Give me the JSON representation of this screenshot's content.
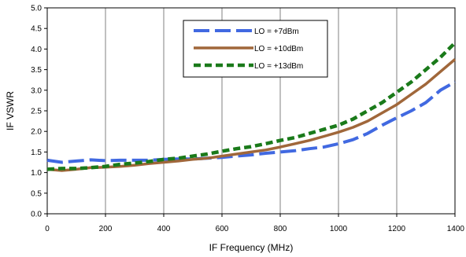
{
  "chart_data": {
    "type": "line",
    "title": "",
    "xlabel": "IF Frequency (MHz)",
    "ylabel": "IF VSWR",
    "xlim": [
      0,
      1400
    ],
    "ylim": [
      0.0,
      5.0
    ],
    "x_ticks": [
      0,
      200,
      400,
      600,
      800,
      1000,
      1200,
      1400
    ],
    "y_ticks": [
      0.0,
      0.5,
      1.0,
      1.5,
      2.0,
      2.5,
      3.0,
      3.5,
      4.0,
      4.5,
      5.0
    ],
    "x_tick_labels": [
      "0",
      "200",
      "400",
      "600",
      "800",
      "1000",
      "1200",
      "1400"
    ],
    "y_tick_labels": [
      "0.0",
      "0.5",
      "1.0",
      "1.5",
      "2.0",
      "2.5",
      "3.0",
      "3.5",
      "4.0",
      "4.5",
      "5.0"
    ],
    "grid": "vertical",
    "legend_position": "top-center",
    "series": [
      {
        "name": "LO = +7dBm",
        "color": "#4169E1",
        "dash": "long-dash",
        "x": [
          0,
          50,
          100,
          150,
          200,
          250,
          300,
          350,
          400,
          450,
          500,
          550,
          600,
          650,
          700,
          750,
          800,
          850,
          900,
          950,
          1000,
          1050,
          1100,
          1150,
          1200,
          1250,
          1300,
          1350,
          1400
        ],
        "y": [
          1.3,
          1.25,
          1.28,
          1.31,
          1.29,
          1.3,
          1.3,
          1.3,
          1.32,
          1.33,
          1.33,
          1.35,
          1.37,
          1.4,
          1.43,
          1.47,
          1.5,
          1.53,
          1.58,
          1.62,
          1.7,
          1.8,
          1.95,
          2.15,
          2.33,
          2.5,
          2.7,
          3.0,
          3.2
        ]
      },
      {
        "name": "LO = +10dBm",
        "color": "#A0673A",
        "dash": "solid",
        "x": [
          0,
          50,
          100,
          150,
          200,
          250,
          300,
          350,
          400,
          450,
          500,
          550,
          600,
          650,
          700,
          750,
          800,
          850,
          900,
          950,
          1000,
          1050,
          1100,
          1150,
          1200,
          1250,
          1300,
          1350,
          1400
        ],
        "y": [
          1.08,
          1.05,
          1.08,
          1.12,
          1.13,
          1.15,
          1.18,
          1.22,
          1.25,
          1.28,
          1.32,
          1.35,
          1.4,
          1.45,
          1.5,
          1.55,
          1.62,
          1.7,
          1.78,
          1.88,
          1.98,
          2.1,
          2.25,
          2.45,
          2.65,
          2.9,
          3.15,
          3.45,
          3.75
        ]
      },
      {
        "name": "LO = +13dBm",
        "color": "#1A7A1A",
        "dash": "dashed",
        "x": [
          0,
          50,
          100,
          150,
          200,
          250,
          300,
          350,
          400,
          450,
          500,
          550,
          600,
          650,
          700,
          750,
          800,
          850,
          900,
          950,
          1000,
          1050,
          1100,
          1150,
          1200,
          1250,
          1300,
          1350,
          1400
        ],
        "y": [
          1.08,
          1.1,
          1.1,
          1.12,
          1.15,
          1.2,
          1.23,
          1.27,
          1.32,
          1.35,
          1.4,
          1.45,
          1.52,
          1.58,
          1.63,
          1.7,
          1.78,
          1.85,
          1.95,
          2.05,
          2.15,
          2.3,
          2.5,
          2.7,
          2.95,
          3.2,
          3.5,
          3.8,
          4.15
        ]
      }
    ]
  }
}
